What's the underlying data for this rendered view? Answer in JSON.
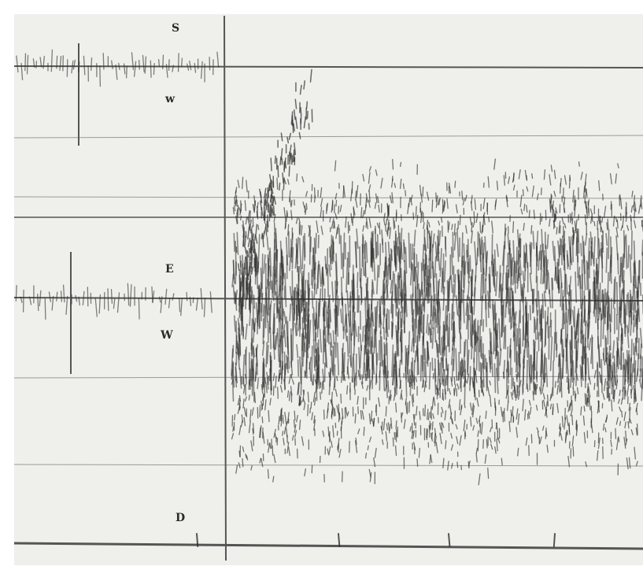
{
  "labels": {
    "s": "S",
    "w_upper": "w",
    "e": "E",
    "w_lower": "W",
    "d": "D"
  }
}
